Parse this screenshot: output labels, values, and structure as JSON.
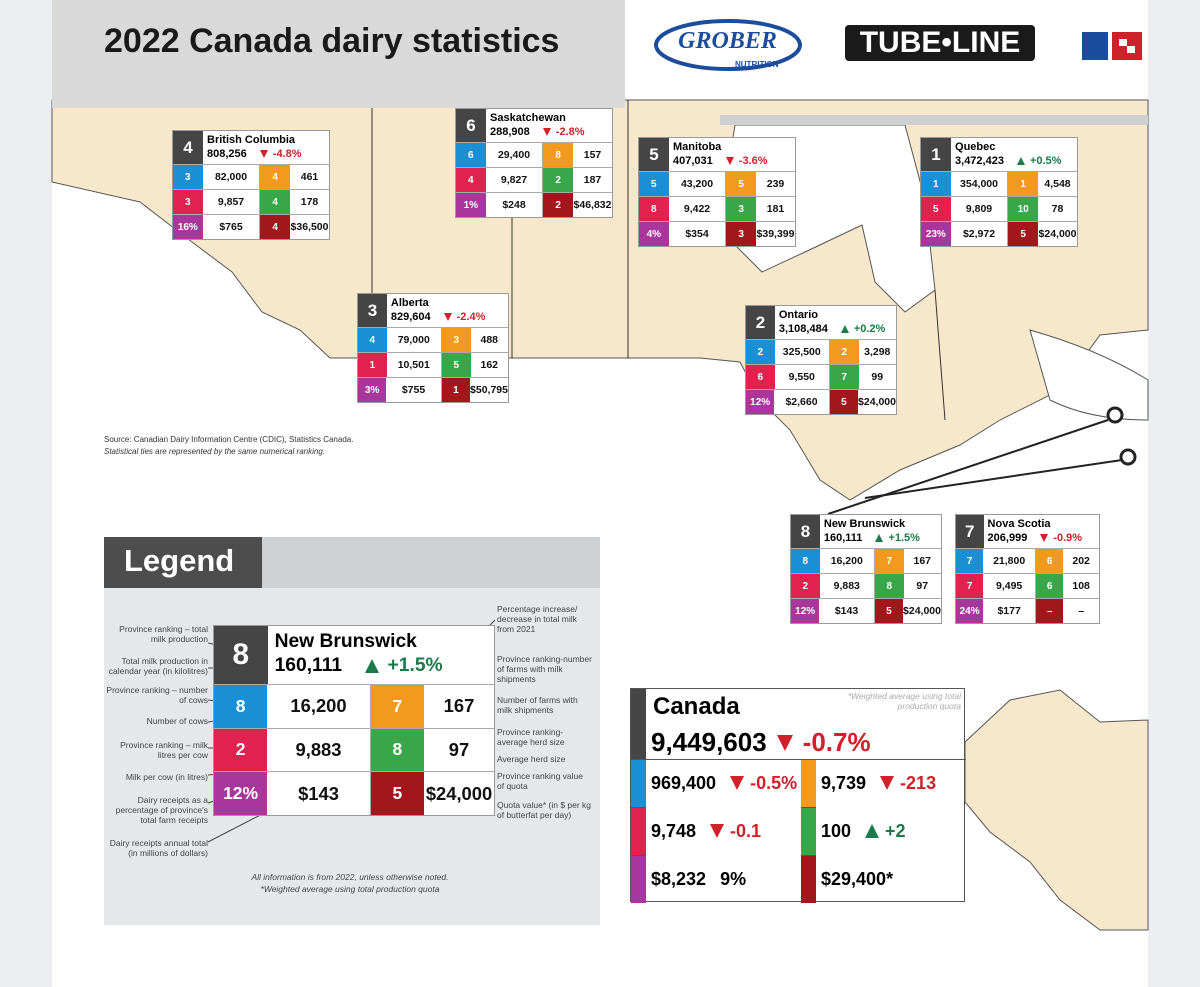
{
  "header": {
    "title": "2022 Canada dairy statistics",
    "logos": [
      "GROBER",
      "NUTRITION",
      "TUBE•LINE"
    ]
  },
  "provinces": [
    {
      "rank": 4,
      "name": "British Columbia",
      "total": "808,256",
      "change": "-4.8%",
      "rows": [
        [
          3,
          "82,000",
          4,
          "461"
        ],
        [
          3,
          "9,857",
          4,
          "178"
        ],
        [
          "16%",
          "$765",
          4,
          "$36,500"
        ]
      ]
    },
    {
      "rank": 6,
      "name": "Saskatchewan",
      "total": "288,908",
      "change": "-2.8%",
      "rows": [
        [
          6,
          "29,400",
          8,
          "157"
        ],
        [
          4,
          "9,827",
          2,
          "187"
        ],
        [
          "1%",
          "$248",
          2,
          "$46,832"
        ]
      ]
    },
    {
      "rank": 5,
      "name": "Manitoba",
      "total": "407,031",
      "change": "-3.6%",
      "rows": [
        [
          5,
          "43,200",
          5,
          "239"
        ],
        [
          8,
          "9,422",
          3,
          "181"
        ],
        [
          "4%",
          "$354",
          3,
          "$39,399"
        ]
      ]
    },
    {
      "rank": 1,
      "name": "Quebec",
      "total": "3,472,423",
      "change": "+0.5%",
      "rows": [
        [
          1,
          "354,000",
          1,
          "4,548"
        ],
        [
          5,
          "9,809",
          10,
          "78"
        ],
        [
          "23%",
          "$2,972",
          5,
          "$24,000"
        ]
      ]
    },
    {
      "rank": 3,
      "name": "Alberta",
      "total": "829,604",
      "change": "-2.4%",
      "rows": [
        [
          4,
          "79,000",
          3,
          "488"
        ],
        [
          1,
          "10,501",
          5,
          "162"
        ],
        [
          "3%",
          "$755",
          1,
          "$50,795"
        ]
      ]
    },
    {
      "rank": 2,
      "name": "Ontario",
      "total": "3,108,484",
      "change": "+0.2%",
      "rows": [
        [
          2,
          "325,500",
          2,
          "3,298"
        ],
        [
          6,
          "9,550",
          7,
          "99"
        ],
        [
          "12%",
          "$2,660",
          5,
          "$24,000"
        ]
      ]
    },
    {
      "rank": 8,
      "name": "New Brunswick",
      "total": "160,111",
      "change": "+1.5%",
      "rows": [
        [
          8,
          "16,200",
          7,
          "167"
        ],
        [
          2,
          "9,883",
          8,
          "97"
        ],
        [
          "12%",
          "$143",
          5,
          "$24,000"
        ]
      ]
    },
    {
      "rank": 7,
      "name": "Nova Scotia",
      "total": "206,999",
      "change": "-0.9%",
      "rows": [
        [
          7,
          "21,800",
          6,
          "202"
        ],
        [
          7,
          "9,495",
          6,
          "108"
        ],
        [
          "24%",
          "$177",
          "–",
          "–"
        ]
      ]
    }
  ],
  "source": [
    "Source: Canadian Dairy Information Centre (CDIC), Statistics Canada.",
    "Statistical ties are represented by the same numerical ranking."
  ],
  "legend": {
    "title": "Legend",
    "example": {
      "rank": 8,
      "name": "New Brunswick",
      "total": "160,111",
      "change": "+1.5%",
      "rows": [
        [
          8,
          "16,200",
          7,
          "167"
        ],
        [
          2,
          "9,883",
          8,
          "97"
        ],
        [
          "12%",
          "$143",
          5,
          "$24,000"
        ]
      ]
    },
    "left_notes": [
      "Province ranking – total milk production",
      "Total milk production in calendar year (in kilolitres)",
      "Province ranking – number of cows",
      "Number of cows",
      "Province ranking – milk litres per cow",
      "Milk per cow (in litres)",
      "Dairy receipts as a percentage of province's total farm receipts",
      "Dairy receipts annual total (in millions of dollars)"
    ],
    "right_notes": [
      "Percentage increase/ decrease in total milk from 2021",
      "Province ranking-number of farms with milk shipments",
      "Number of farms with milk shipments",
      "Province ranking-average herd size",
      "Average herd size",
      "Province ranking value of quota",
      "Quota value* (in $ per kg of butterfat per day)"
    ],
    "footnotes": [
      "All information is from 2022, unless otherwise noted.",
      "*Weighted average using total production quota"
    ]
  },
  "canada": {
    "name": "Canada",
    "note": "*Weighted average using total production quota",
    "total": "9,449,603",
    "change": "-0.7%",
    "cells": [
      {
        "value": "969,400",
        "change": "-0.5%"
      },
      {
        "value": "9,739",
        "change": "-213"
      },
      {
        "value": "9,748",
        "change": "-0.1"
      },
      {
        "value": "100",
        "change": "+2"
      },
      {
        "value": "$8,232",
        "extra": "9%"
      },
      {
        "value": "$29,400*"
      }
    ]
  }
}
